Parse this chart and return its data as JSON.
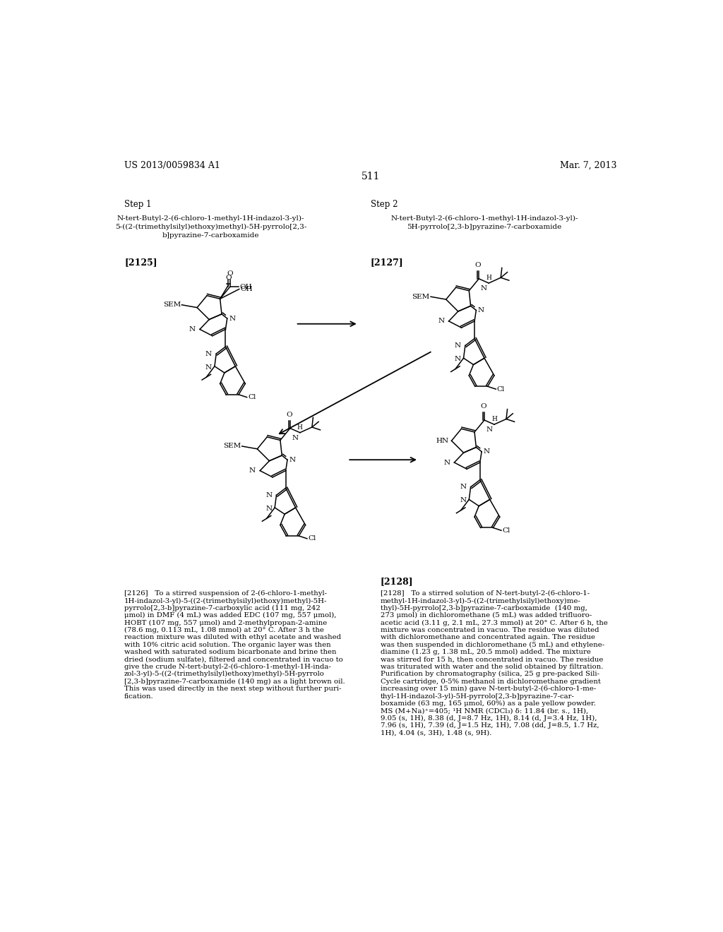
{
  "bg_color": "#ffffff",
  "header_left": "US 2013/0059834 A1",
  "header_right": "Mar. 7, 2013",
  "page_number": "511",
  "step1_label": "Step 1",
  "step2_label": "Step 2",
  "compound_2125_name": "N-tert-Butyl-2-(6-chloro-1-methyl-1H-indazol-3-yl)-\n5-((2-(trimethylsilyl)ethoxy)methyl)-5H-pyrrolo[2,3-\nb]pyrazine-7-carboxamide",
  "compound_2125_ref": "[2125]",
  "compound_2127_name": "N-tert-Butyl-2-(6-chloro-1-methyl-1H-indazol-3-yl)-\n5H-pyrrolo[2,3-b]pyrazine-7-carboxamide",
  "compound_2127_ref": "[2127]",
  "font_size_header": 9,
  "font_size_body": 7.5,
  "font_size_step": 8.5,
  "font_size_compound": 7.5,
  "font_size_page": 10,
  "lines_2126": [
    "[2126]   To a stirred suspension of 2-(6-chloro-1-methyl-",
    "1H-indazol-3-yl)-5-((2-(trimethylsilyl)ethoxy)methyl)-5H-",
    "pyrrolo[2,3-b]pyrazine-7-carboxylic acid (111 mg, 242",
    "μmol) in DMF (4 mL) was added EDC (107 mg, 557 μmol),",
    "HOBT (107 mg, 557 μmol) and 2-methylpropan-2-amine",
    "(78.6 mg, 0.113 mL, 1.08 mmol) at 20° C. After 3 h the",
    "reaction mixture was diluted with ethyl acetate and washed",
    "with 10% citric acid solution. The organic layer was then",
    "washed with saturated sodium bicarbonate and brine then",
    "dried (sodium sulfate), filtered and concentrated in vacuo to",
    "give the crude N-tert-butyl-2-(6-chloro-1-methyl-1H-inda-",
    "zol-3-yl)-5-((2-(trimethylsilyl)ethoxy)methyl)-5H-pyrrolo",
    "[2,3-b]pyrazine-7-carboxamide (140 mg) as a light brown oil.",
    "This was used directly in the next step without further puri-",
    "fication."
  ],
  "lines_2128": [
    "[2128]   To a stirred solution of N-tert-butyl-2-(6-chloro-1-",
    "methyl-1H-indazol-3-yl)-5-((2-(trimethylsilyl)ethoxy)me-",
    "thyl)-5H-pyrrolo[2,3-b]pyrazine-7-carboxamide  (140 mg,",
    "273 μmol) in dichloromethane (5 mL) was added trifluoro-",
    "acetic acid (3.11 g, 2.1 mL, 27.3 mmol) at 20° C. After 6 h, the",
    "mixture was concentrated in vacuo. The residue was diluted",
    "with dichloromethane and concentrated again. The residue",
    "was then suspended in dichloromethane (5 mL) and ethylene-",
    "diamine (1.23 g, 1.38 mL, 20.5 mmol) added. The mixture",
    "was stirred for 15 h, then concentrated in vacuo. The residue",
    "was triturated with water and the solid obtained by filtration.",
    "Purification by chromatography (silica, 25 g pre-packed Sili-",
    "Cycle cartridge, 0-5% methanol in dichloromethane gradient",
    "increasing over 15 min) gave N-tert-butyl-2-(6-chloro-1-me-",
    "thyl-1H-indazol-3-yl)-5H-pyrrolo[2,3-b]pyrazine-7-car-",
    "boxamide (63 mg, 165 μmol, 60%) as a pale yellow powder.",
    "MS (M+Na)⁺=405; ¹H NMR (CDCl₃) δ: 11.84 (br. s., 1H),",
    "9.05 (s, 1H), 8.38 (d, J=8.7 Hz, 1H), 8.14 (d, J=3.4 Hz, 1H),",
    "7.96 (s, 1H), 7.39 (d, J=1.5 Hz, 1H), 7.08 (dd, J=8.5, 1.7 Hz,",
    "1H), 4.04 (s, 3H), 1.48 (s, 9H)."
  ]
}
